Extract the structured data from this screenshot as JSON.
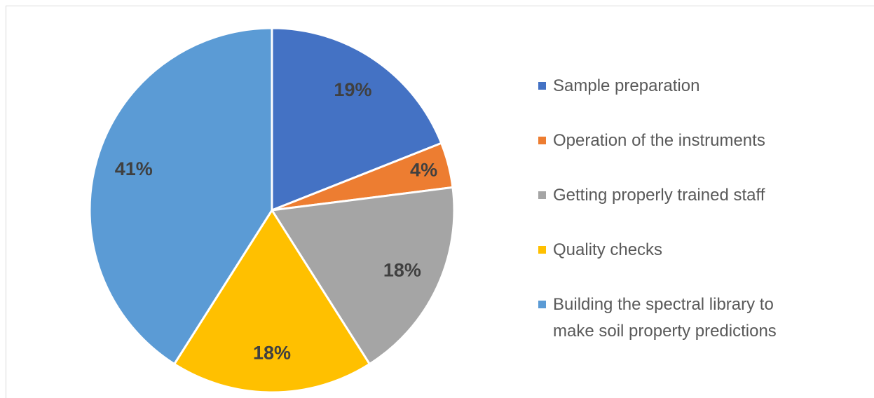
{
  "chart_data": {
    "type": "pie",
    "categories": [
      "Sample preparation",
      "Operation of the instruments",
      "Getting properly trained staff",
      "Quality checks",
      "Building the spectral library to make soil property predictions"
    ],
    "values": [
      19,
      4,
      18,
      18,
      41
    ],
    "value_labels": [
      "19%",
      "4%",
      "18%",
      "18%",
      "41%"
    ],
    "colors": [
      "#4472c4",
      "#ed7d31",
      "#a5a5a5",
      "#ffc000",
      "#5b9bd5"
    ],
    "legend": "right"
  }
}
